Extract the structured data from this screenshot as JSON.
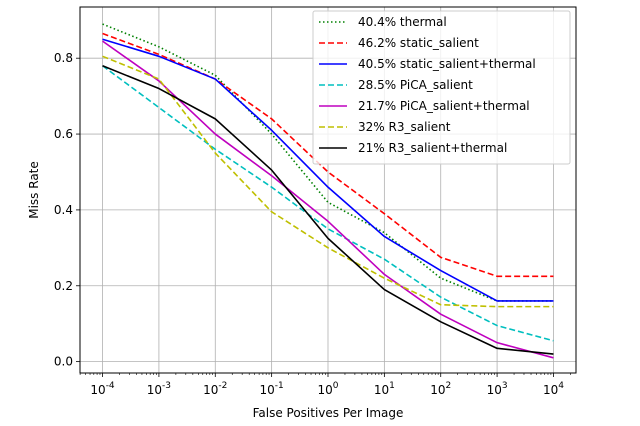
{
  "chart_data": {
    "type": "line",
    "title": "",
    "xlabel": "False Positives Per Image",
    "ylabel": "Miss Rate",
    "xscale": "log",
    "x_exponents": [
      -4,
      -3,
      -2,
      -1,
      0,
      1,
      2,
      3,
      4
    ],
    "x_tick_labels": [
      "10^-4",
      "10^-3",
      "10^-2",
      "10^-1",
      "10^0",
      "10^1",
      "10^2",
      "10^3",
      "10^4"
    ],
    "xlim_exp": [
      -4.4,
      4.4
    ],
    "ylim": [
      -0.03,
      0.935
    ],
    "y_ticks": [
      0.0,
      0.2,
      0.4,
      0.6,
      0.8
    ],
    "y_tick_labels": [
      "0.0",
      "0.2",
      "0.4",
      "0.6",
      "0.8"
    ],
    "grid": true,
    "legend_position": "upper-right",
    "series": [
      {
        "name": "40.4% thermal",
        "color": "#008000",
        "dash": "dotted",
        "values": [
          0.89,
          0.83,
          0.755,
          0.6,
          0.42,
          0.34,
          0.22,
          0.16,
          0.16
        ]
      },
      {
        "name": "46.2% static_salient",
        "color": "#ff0000",
        "dash": "dashed",
        "values": [
          0.865,
          0.81,
          0.745,
          0.64,
          0.5,
          0.39,
          0.275,
          0.225,
          0.225
        ]
      },
      {
        "name": "40.5% static_salient+thermal",
        "color": "#0000ff",
        "dash": "solid",
        "values": [
          0.85,
          0.805,
          0.745,
          0.61,
          0.46,
          0.33,
          0.24,
          0.16,
          0.16
        ]
      },
      {
        "name": "28.5% PiCA_salient",
        "color": "#00bfbf",
        "dash": "dashed",
        "values": [
          0.78,
          0.67,
          0.56,
          0.46,
          0.35,
          0.27,
          0.17,
          0.095,
          0.055
        ]
      },
      {
        "name": "21.7% PiCA_salient+thermal",
        "color": "#bf00bf",
        "dash": "solid",
        "values": [
          0.845,
          0.74,
          0.6,
          0.49,
          0.37,
          0.23,
          0.125,
          0.05,
          0.01
        ]
      },
      {
        "name": "32% R3_salient",
        "color": "#bfbf00",
        "dash": "dashed",
        "values": [
          0.805,
          0.745,
          0.55,
          0.395,
          0.3,
          0.22,
          0.15,
          0.145,
          0.145
        ]
      },
      {
        "name": "21%  R3_salient+thermal",
        "color": "#000000",
        "dash": "solid",
        "values": [
          0.78,
          0.72,
          0.64,
          0.505,
          0.325,
          0.19,
          0.105,
          0.035,
          0.02
        ]
      }
    ]
  }
}
